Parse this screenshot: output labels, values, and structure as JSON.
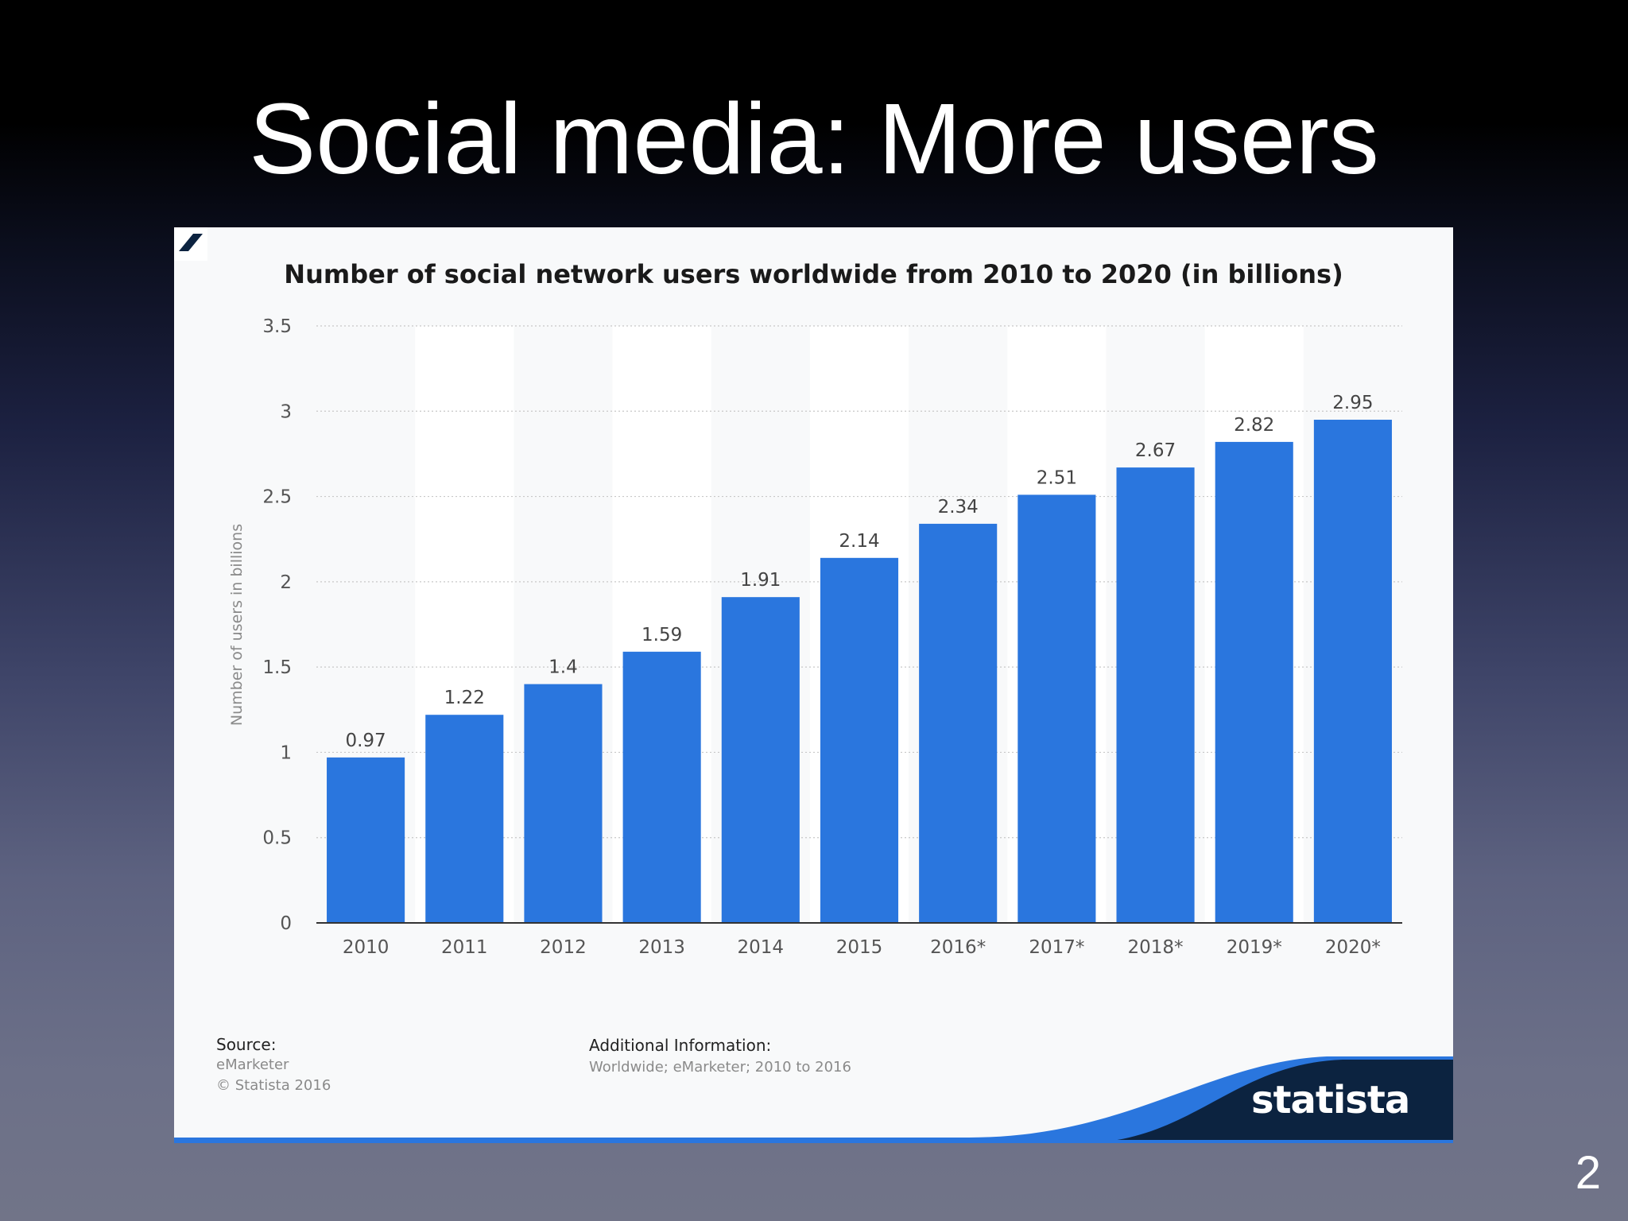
{
  "slide": {
    "title": "Social media: More users",
    "page_number": "2"
  },
  "colors": {
    "bar": "#2a76de",
    "panel_background": "#f8f9fa",
    "brand_dark": "#0c2340",
    "brand_blue": "#2a76de"
  },
  "chart_data": {
    "type": "bar",
    "title": "Number of social network users worldwide from 2010 to 2020 (in billions)",
    "xlabel": "",
    "ylabel": "Number of users in billions",
    "categories": [
      "2010",
      "2011",
      "2012",
      "2013",
      "2014",
      "2015",
      "2016*",
      "2017*",
      "2018*",
      "2019*",
      "2020*"
    ],
    "values": [
      0.97,
      1.22,
      1.4,
      1.59,
      1.91,
      2.14,
      2.34,
      2.51,
      2.67,
      2.82,
      2.95
    ],
    "value_labels": [
      "0.97",
      "1.22",
      "1.4",
      "1.59",
      "1.91",
      "2.14",
      "2.34",
      "2.51",
      "2.67",
      "2.82",
      "2.95"
    ],
    "ylim": [
      0,
      3.5
    ],
    "yticks": [
      "0",
      "0.5",
      "1",
      "1.5",
      "2",
      "2.5",
      "3",
      "3.5"
    ],
    "grid": true,
    "legend": "none"
  },
  "footer": {
    "source_label": "Source:",
    "source_lines": [
      "eMarketer",
      "© Statista 2016"
    ],
    "additional_label": "Additional Information:",
    "additional_text": "Worldwide; eMarketer; 2010 to 2016"
  },
  "brand": {
    "name": "statista",
    "icon": "statista-logo-icon"
  }
}
